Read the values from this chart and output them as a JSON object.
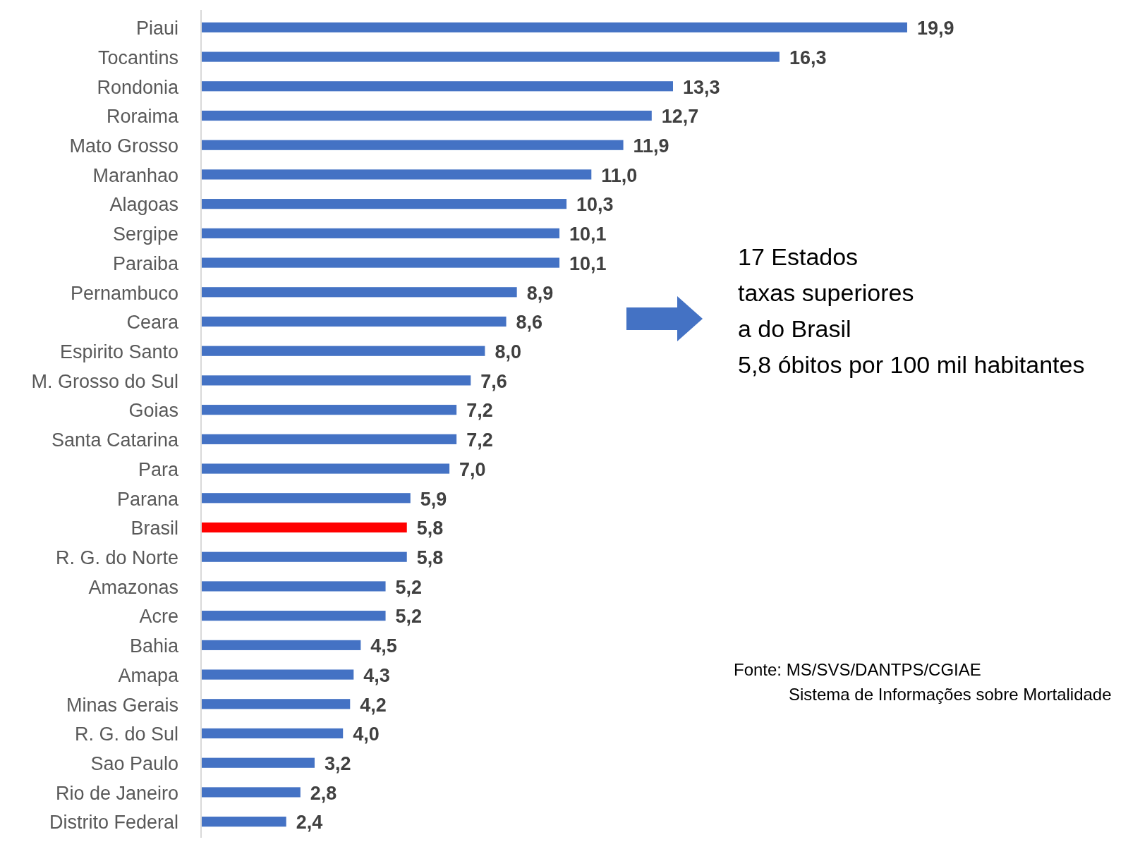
{
  "chart_data": {
    "type": "bar",
    "orientation": "horizontal",
    "categories": [
      "Piaui",
      "Tocantins",
      "Rondonia",
      "Roraima",
      "Mato Grosso",
      "Maranhao",
      "Alagoas",
      "Sergipe",
      "Paraiba",
      "Pernambuco",
      "Ceara",
      "Espirito Santo",
      "M. Grosso do Sul",
      "Goias",
      "Santa Catarina",
      "Para",
      "Parana",
      "Brasil",
      "R. G. do Norte",
      "Amazonas",
      "Acre",
      "Bahia",
      "Amapa",
      "Minas Gerais",
      "R. G. do Sul",
      "Sao Paulo",
      "Rio de Janeiro",
      "Distrito Federal"
    ],
    "values": [
      19.9,
      16.3,
      13.3,
      12.7,
      11.9,
      11.0,
      10.3,
      10.1,
      10.1,
      8.9,
      8.6,
      8.0,
      7.6,
      7.2,
      7.2,
      7.0,
      5.9,
      5.8,
      5.8,
      5.2,
      5.2,
      4.5,
      4.3,
      4.2,
      4.0,
      3.2,
      2.8,
      2.4
    ],
    "value_labels": [
      "19,9",
      "16,3",
      "13,3",
      "12,7",
      "11,9",
      "11,0",
      "10,3",
      "10,1",
      "10,1",
      "8,9",
      "8,6",
      "8,0",
      "7,6",
      "7,2",
      "7,2",
      "7,0",
      "5,9",
      "5,8",
      "5,8",
      "5,2",
      "5,2",
      "4,5",
      "4,3",
      "4,2",
      "4,0",
      "3,2",
      "2,8",
      "2,4"
    ],
    "colors": [
      "#4472c4",
      "#4472c4",
      "#4472c4",
      "#4472c4",
      "#4472c4",
      "#4472c4",
      "#4472c4",
      "#4472c4",
      "#4472c4",
      "#4472c4",
      "#4472c4",
      "#4472c4",
      "#4472c4",
      "#4472c4",
      "#4472c4",
      "#4472c4",
      "#4472c4",
      "#ff0000",
      "#4472c4",
      "#4472c4",
      "#4472c4",
      "#4472c4",
      "#4472c4",
      "#4472c4",
      "#4472c4",
      "#4472c4",
      "#4472c4",
      "#4472c4"
    ],
    "tick_labels": "y",
    "annotations": [
      "17 Estados\ntaxas superiores\na do Brasil\n5,8 óbitos por 100 mil habitantes",
      "Fonte: MS/SVS/DANTPS/CGIAE\nSistema de Informações sobre Mortalidade"
    ]
  }
}
